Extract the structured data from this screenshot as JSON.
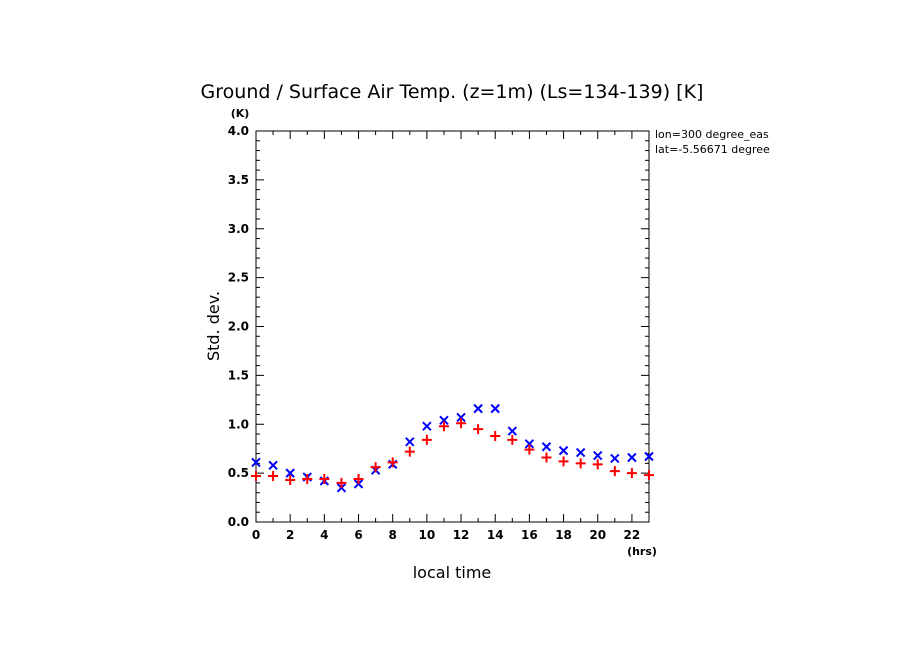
{
  "chart_data": {
    "type": "scatter",
    "title": "Ground / Surface Air Temp. (z=1m) (Ls=134-139) [K]",
    "xlabel": "local time",
    "ylabel": "Std. dev.",
    "x_unit": "(hrs)",
    "y_unit": "(K)",
    "xlim": [
      0,
      23
    ],
    "ylim": [
      0,
      4
    ],
    "x_ticks": [
      "0",
      "2",
      "4",
      "6",
      "8",
      "10",
      "12",
      "14",
      "16",
      "18",
      "20",
      "22"
    ],
    "y_ticks": [
      "0.0",
      "0.5",
      "1.0",
      "1.5",
      "2.0",
      "2.5",
      "3.0",
      "3.5",
      "4.0"
    ],
    "annotations": [
      "lon=300 degree_eas",
      "lat=-5.56671 degree"
    ],
    "x": [
      0,
      1,
      2,
      3,
      4,
      5,
      6,
      7,
      8,
      9,
      10,
      11,
      12,
      13,
      14,
      15,
      16,
      17,
      18,
      19,
      20,
      21,
      22,
      23
    ],
    "series": [
      {
        "marker": "x",
        "color": "#0000ff",
        "values": [
          0.61,
          0.58,
          0.5,
          0.46,
          0.42,
          0.35,
          0.39,
          0.53,
          0.59,
          0.82,
          0.98,
          1.04,
          1.07,
          1.16,
          1.16,
          0.93,
          0.8,
          0.77,
          0.73,
          0.71,
          0.68,
          0.65,
          0.66,
          0.67
        ]
      },
      {
        "marker": "+",
        "color": "#ff0000",
        "values": [
          0.47,
          0.47,
          0.43,
          0.44,
          0.44,
          0.4,
          0.44,
          0.56,
          0.61,
          0.72,
          0.84,
          0.98,
          1.01,
          0.95,
          0.88,
          0.84,
          0.74,
          0.66,
          0.62,
          0.6,
          0.59,
          0.52,
          0.5,
          0.48
        ]
      }
    ]
  }
}
